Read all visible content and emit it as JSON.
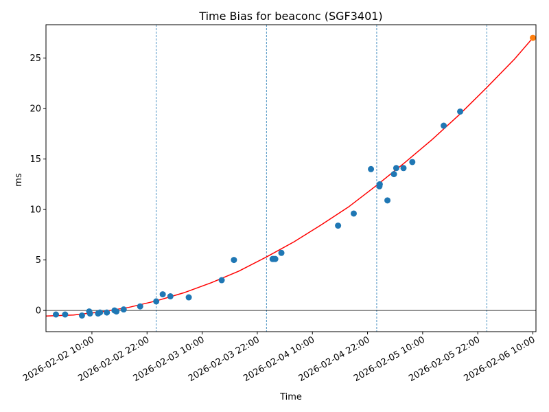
{
  "chart_data": {
    "type": "scatter",
    "title": "Time Bias for beaconc (SGF3401)",
    "xlabel": "Time",
    "ylabel": "ms",
    "x_tick_labels": [
      "2026-02-02 10:00",
      "2026-02-02 22:00",
      "2026-02-03 10:00",
      "2026-02-03 22:00",
      "2026-02-04 10:00",
      "2026-02-04 22:00",
      "2026-02-05 10:00",
      "2026-02-05 22:00",
      "2026-02-06 10:00"
    ],
    "xlim": [
      "2026-02-02 00:00",
      "2026-02-06 10:40"
    ],
    "ylim": [
      -2.1,
      28.3
    ],
    "y_ticks": [
      0,
      5,
      10,
      15,
      20,
      25
    ],
    "grid": false,
    "legend": "none",
    "midnight_markers": [
      "2026-02-02 00:00",
      "2026-02-03 00:00",
      "2026-02-04 00:00",
      "2026-02-05 00:00",
      "2026-02-06 00:00"
    ],
    "zero_line": 0,
    "series": [
      {
        "kind": "points",
        "color": "#1f77b4",
        "points": [
          {
            "x": "2026-02-02 02:10",
            "y": -0.4
          },
          {
            "x": "2026-02-02 04:10",
            "y": -0.4
          },
          {
            "x": "2026-02-02 07:50",
            "y": -0.5
          },
          {
            "x": "2026-02-02 09:25",
            "y": -0.1
          },
          {
            "x": "2026-02-02 09:35",
            "y": -0.3
          },
          {
            "x": "2026-02-02 11:20",
            "y": -0.3
          },
          {
            "x": "2026-02-02 11:45",
            "y": -0.2
          },
          {
            "x": "2026-02-02 13:15",
            "y": -0.2
          },
          {
            "x": "2026-02-02 14:55",
            "y": 0.0
          },
          {
            "x": "2026-02-02 15:20",
            "y": -0.1
          },
          {
            "x": "2026-02-02 16:55",
            "y": 0.1
          },
          {
            "x": "2026-02-02 20:30",
            "y": 0.4
          },
          {
            "x": "2026-02-03 00:00",
            "y": 0.9
          },
          {
            "x": "2026-02-03 01:25",
            "y": 1.6
          },
          {
            "x": "2026-02-03 03:05",
            "y": 1.4
          },
          {
            "x": "2026-02-03 07:05",
            "y": 1.3
          },
          {
            "x": "2026-02-03 14:15",
            "y": 3.0
          },
          {
            "x": "2026-02-03 16:55",
            "y": 5.0
          },
          {
            "x": "2026-02-04 01:20",
            "y": 5.1
          },
          {
            "x": "2026-02-04 01:35",
            "y": 5.1
          },
          {
            "x": "2026-02-04 01:55",
            "y": 5.1
          },
          {
            "x": "2026-02-04 03:15",
            "y": 5.7
          },
          {
            "x": "2026-02-04 15:35",
            "y": 8.4
          },
          {
            "x": "2026-02-04 19:00",
            "y": 9.6
          },
          {
            "x": "2026-02-04 22:45",
            "y": 14.0
          },
          {
            "x": "2026-02-05 00:35",
            "y": 12.3
          },
          {
            "x": "2026-02-05 00:40",
            "y": 12.5
          },
          {
            "x": "2026-02-05 02:20",
            "y": 10.9
          },
          {
            "x": "2026-02-05 03:45",
            "y": 13.5
          },
          {
            "x": "2026-02-05 04:15",
            "y": 14.1
          },
          {
            "x": "2026-02-05 05:50",
            "y": 14.1
          },
          {
            "x": "2026-02-05 07:45",
            "y": 14.7
          },
          {
            "x": "2026-02-05 14:35",
            "y": 18.3
          },
          {
            "x": "2026-02-05 18:10",
            "y": 19.7
          }
        ]
      },
      {
        "kind": "points",
        "color": "#ff7f0e",
        "points": [
          {
            "x": "2026-02-06 10:00",
            "y": 27.0
          }
        ]
      },
      {
        "kind": "curve",
        "color": "#ff0000",
        "points": [
          {
            "x": "2026-02-02 00:00",
            "y": -0.55
          },
          {
            "x": "2026-02-02 06:00",
            "y": -0.45
          },
          {
            "x": "2026-02-02 12:00",
            "y": -0.15
          },
          {
            "x": "2026-02-02 18:00",
            "y": 0.3
          },
          {
            "x": "2026-02-03 00:00",
            "y": 0.95
          },
          {
            "x": "2026-02-03 06:00",
            "y": 1.75
          },
          {
            "x": "2026-02-03 12:00",
            "y": 2.75
          },
          {
            "x": "2026-02-03 18:00",
            "y": 3.9
          },
          {
            "x": "2026-02-04 00:00",
            "y": 5.3
          },
          {
            "x": "2026-02-04 06:00",
            "y": 6.8
          },
          {
            "x": "2026-02-04 12:00",
            "y": 8.5
          },
          {
            "x": "2026-02-04 18:00",
            "y": 10.3
          },
          {
            "x": "2026-02-05 00:00",
            "y": 12.4
          },
          {
            "x": "2026-02-05 06:00",
            "y": 14.6
          },
          {
            "x": "2026-02-05 12:00",
            "y": 16.9
          },
          {
            "x": "2026-02-05 18:00",
            "y": 19.4
          },
          {
            "x": "2026-02-06 00:00",
            "y": 22.1
          },
          {
            "x": "2026-02-06 06:00",
            "y": 24.9
          },
          {
            "x": "2026-02-06 10:00",
            "y": 27.0
          }
        ]
      }
    ]
  }
}
